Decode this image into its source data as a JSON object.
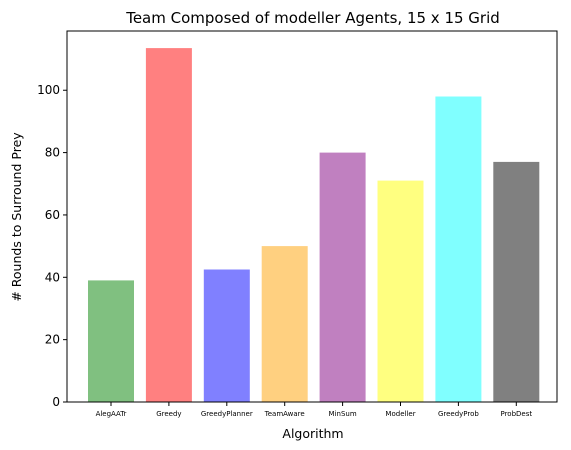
{
  "chart_data": {
    "type": "bar",
    "title": "Team Composed of modeller Agents, 15 x 15 Grid",
    "xlabel": "Algorithm",
    "ylabel": "# Rounds to Surround Prey",
    "categories": [
      "AlegAATr",
      "Greedy",
      "GreedyPlanner",
      "TeamAware",
      "MinSum",
      "Modeller",
      "GreedyProb",
      "ProbDest"
    ],
    "values": [
      39,
      113.5,
      42.5,
      50,
      80,
      71,
      98,
      77
    ],
    "colors": [
      "#80c080",
      "#ff8080",
      "#8080ff",
      "#ffd080",
      "#c080c0",
      "#ffff80",
      "#80ffff",
      "#808080"
    ],
    "ylim": [
      0,
      119
    ],
    "yticks": [
      0,
      20,
      40,
      60,
      80,
      100
    ],
    "grid": false,
    "legend": false
  }
}
